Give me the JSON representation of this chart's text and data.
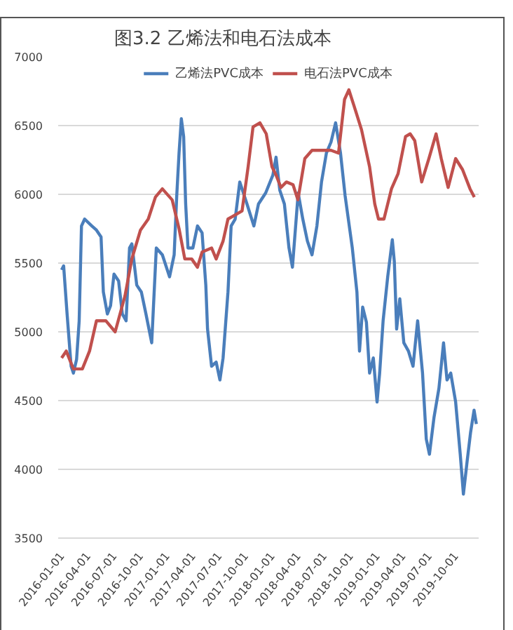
{
  "chart_data": {
    "type": "line",
    "title": "图3.2  乙烯法和电石法成本",
    "series": [
      {
        "name": "乙烯法PVC成本",
        "color": "#4a7ebb",
        "x": [
          "2016-01-01",
          "2016-01-08",
          "2016-01-20",
          "2016-02-03",
          "2016-02-11",
          "2016-02-22",
          "2016-03-02",
          "2016-03-10",
          "2016-03-21",
          "2016-04-15",
          "2016-05-01",
          "2016-05-17",
          "2016-05-25",
          "2016-06-08",
          "2016-06-19",
          "2016-07-01",
          "2016-07-17",
          "2016-07-30",
          "2016-08-12",
          "2016-08-24",
          "2016-09-01",
          "2016-09-18",
          "2016-10-04",
          "2016-10-20",
          "2016-11-09",
          "2016-11-25",
          "2016-12-16",
          "2017-01-10",
          "2017-01-26",
          "2017-02-04",
          "2017-02-12",
          "2017-02-20",
          "2017-02-28",
          "2017-03-07",
          "2017-03-15",
          "2017-04-01",
          "2017-04-17",
          "2017-05-03",
          "2017-05-16",
          "2017-05-22",
          "2017-06-05",
          "2017-06-21",
          "2017-07-04",
          "2017-07-15",
          "2017-08-01",
          "2017-08-12",
          "2017-08-26",
          "2017-09-11",
          "2017-10-06",
          "2017-10-30",
          "2017-11-15",
          "2017-12-10",
          "2018-01-04",
          "2018-01-15",
          "2018-01-28",
          "2018-02-13",
          "2018-03-01",
          "2018-03-13",
          "2018-04-02",
          "2018-04-18",
          "2018-05-04",
          "2018-05-20",
          "2018-06-06",
          "2018-06-22",
          "2018-07-09",
          "2018-07-25",
          "2018-08-10",
          "2018-08-27",
          "2018-09-12",
          "2018-10-07",
          "2018-10-23",
          "2018-11-01",
          "2018-11-12",
          "2018-11-25",
          "2018-12-06",
          "2018-12-19",
          "2019-01-01",
          "2019-01-10",
          "2019-01-22",
          "2019-02-07",
          "2019-02-23",
          "2019-03-02",
          "2019-03-10",
          "2019-03-21",
          "2019-04-04",
          "2019-04-20",
          "2019-05-06",
          "2019-05-22",
          "2019-06-08",
          "2019-06-21",
          "2019-07-02",
          "2019-07-18",
          "2019-08-04",
          "2019-08-20",
          "2019-09-01",
          "2019-09-14",
          "2019-10-01",
          "2019-10-17",
          "2019-10-28",
          "2019-11-10",
          "2019-11-22",
          "2019-12-04",
          "2019-12-12"
        ],
        "values": [
          5450,
          5480,
          5130,
          4750,
          4700,
          4800,
          5080,
          5770,
          5820,
          5770,
          5740,
          5690,
          5290,
          5130,
          5190,
          5420,
          5370,
          5130,
          5080,
          5610,
          5640,
          5340,
          5290,
          5130,
          4920,
          5610,
          5560,
          5400,
          5560,
          5990,
          6300,
          6550,
          6420,
          5930,
          5610,
          5610,
          5770,
          5720,
          5340,
          5020,
          4750,
          4780,
          4650,
          4810,
          5290,
          5770,
          5820,
          6090,
          5930,
          5770,
          5930,
          6010,
          6140,
          6270,
          6030,
          5930,
          5610,
          5470,
          6010,
          5820,
          5660,
          5560,
          5770,
          6090,
          6300,
          6380,
          6520,
          6300,
          5990,
          5610,
          5290,
          4860,
          5180,
          5070,
          4700,
          4810,
          4490,
          4700,
          5080,
          5400,
          5670,
          5510,
          5020,
          5240,
          4920,
          4860,
          4750,
          5080,
          4700,
          4220,
          4110,
          4380,
          4590,
          4920,
          4650,
          4700,
          4490,
          4110,
          3820,
          4060,
          4270,
          4430,
          4330
        ]
      },
      {
        "name": "电石法PVC成本",
        "color": "#c0504d",
        "x": [
          "2016-01-01",
          "2016-01-17",
          "2016-02-11",
          "2016-03-13",
          "2016-04-07",
          "2016-05-01",
          "2016-06-03",
          "2016-07-05",
          "2016-08-08",
          "2016-09-01",
          "2016-10-01",
          "2016-10-28",
          "2016-11-22",
          "2016-12-16",
          "2017-01-19",
          "2017-02-12",
          "2017-03-04",
          "2017-03-28",
          "2017-04-17",
          "2017-05-03",
          "2017-06-05",
          "2017-06-21",
          "2017-07-15",
          "2017-08-01",
          "2017-08-26",
          "2017-09-19",
          "2017-10-10",
          "2017-10-27",
          "2017-11-20",
          "2017-12-12",
          "2018-01-01",
          "2018-01-15",
          "2018-02-01",
          "2018-02-20",
          "2018-03-15",
          "2018-04-01",
          "2018-04-25",
          "2018-05-20",
          "2018-06-25",
          "2018-07-25",
          "2018-08-20",
          "2018-09-10",
          "2018-09-25",
          "2018-10-12",
          "2018-11-08",
          "2018-12-06",
          "2018-12-24",
          "2019-01-06",
          "2019-01-25",
          "2019-02-20",
          "2019-03-15",
          "2019-04-10",
          "2019-04-26",
          "2019-05-12",
          "2019-06-05",
          "2019-06-30",
          "2019-07-25",
          "2019-08-12",
          "2019-09-05",
          "2019-10-01",
          "2019-10-25",
          "2019-11-20",
          "2019-12-05"
        ],
        "values": [
          4810,
          4860,
          4730,
          4730,
          4860,
          5080,
          5080,
          5000,
          5260,
          5530,
          5740,
          5820,
          5980,
          6040,
          5960,
          5750,
          5530,
          5530,
          5470,
          5580,
          5610,
          5530,
          5660,
          5820,
          5850,
          5880,
          6200,
          6490,
          6520,
          6440,
          6200,
          6140,
          6050,
          6090,
          6070,
          5960,
          6260,
          6320,
          6320,
          6320,
          6300,
          6690,
          6760,
          6650,
          6470,
          6200,
          5930,
          5820,
          5820,
          6040,
          6150,
          6420,
          6440,
          6390,
          6090,
          6260,
          6440,
          6260,
          6050,
          6260,
          6180,
          6040,
          5980
        ]
      }
    ],
    "xlim": [
      "2015-12-20",
      "2019-12-20"
    ],
    "xticks": [
      "2016-01-01",
      "2016-04-01",
      "2016-07-01",
      "2016-10-01",
      "2017-01-01",
      "2017-04-01",
      "2017-07-01",
      "2017-10-01",
      "2018-01-01",
      "2018-04-01",
      "2018-07-01",
      "2018-10-01",
      "2019-01-01",
      "2019-04-01",
      "2019-07-01",
      "2019-10-01"
    ],
    "ylim": [
      3500,
      7000
    ],
    "yticks": [
      3500,
      4000,
      4500,
      5000,
      5500,
      6000,
      6500,
      7000
    ],
    "grid": "y",
    "legend": "top",
    "marker": "none",
    "line_style": "solid"
  }
}
